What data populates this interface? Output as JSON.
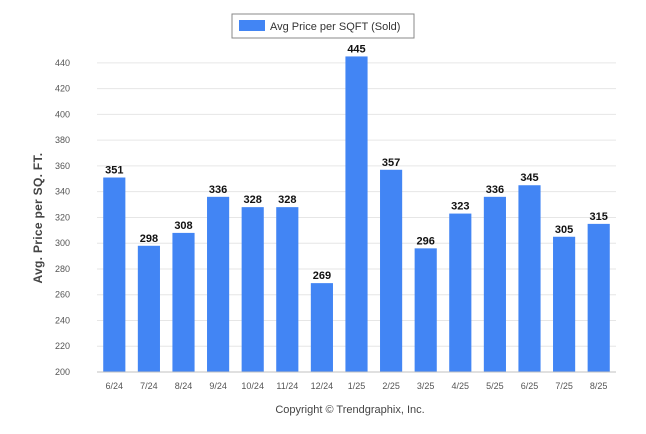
{
  "chart_data": {
    "type": "bar",
    "categories": [
      "6/24",
      "7/24",
      "8/24",
      "9/24",
      "10/24",
      "11/24",
      "12/24",
      "1/25",
      "2/25",
      "3/25",
      "4/25",
      "5/25",
      "6/25",
      "7/25",
      "8/25"
    ],
    "series": [
      {
        "name": "Avg Price per SQFT (Sold)",
        "values": [
          351,
          298,
          308,
          336,
          328,
          328,
          269,
          445,
          357,
          296,
          323,
          336,
          345,
          305,
          315
        ],
        "color": "#4285f4"
      }
    ],
    "ylabel": "Avg. Price per SQ. FT.",
    "xlabel": "",
    "ylim": [
      200,
      450
    ],
    "yticks": [
      200,
      220,
      240,
      260,
      280,
      300,
      320,
      340,
      360,
      380,
      400,
      420,
      440
    ],
    "grid": true,
    "legend": "top-center",
    "data_labels": true
  },
  "footer": "Copyright © Trendgraphix, Inc."
}
